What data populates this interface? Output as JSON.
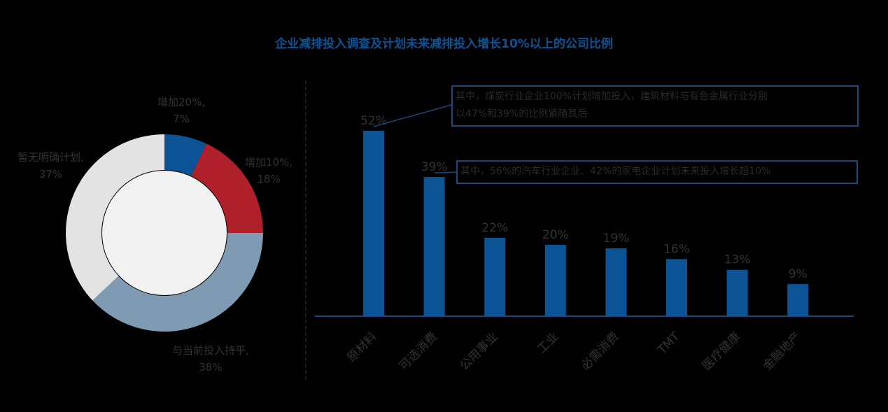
{
  "chart_title": "企业减排投入调查及计划未来减排投入增长10%以上的公司比例",
  "colors": {
    "title": "#0b5394",
    "bar": "#0b5394",
    "axis": "#1b4a7a",
    "text": "#333333",
    "donut_center": "#f2f2f2"
  },
  "chart_data": [
    {
      "type": "pie",
      "donut": true,
      "slices": [
        {
          "name": "增加20%,",
          "value": 7,
          "pct_label": "7%",
          "color": "#0b5394"
        },
        {
          "name": "增加10%,",
          "value": 18,
          "pct_label": "18%",
          "color": "#b0202a"
        },
        {
          "name": "与当前投入持平,",
          "value": 38,
          "pct_label": "38%",
          "color": "#7f9ab3"
        },
        {
          "name": "暂无明确计划,",
          "value": 37,
          "pct_label": "37%",
          "color": "#e3e3e3"
        }
      ]
    },
    {
      "type": "bar",
      "categories": [
        "原材料",
        "可选消费",
        "公用事业",
        "工业",
        "必需消费",
        "TMT",
        "医疗健康",
        "金融地产"
      ],
      "values": [
        52,
        39,
        22,
        20,
        19,
        16,
        13,
        9
      ],
      "data_labels": [
        "52%",
        "39%",
        "22%",
        "20%",
        "19%",
        "16%",
        "13%",
        "9%"
      ],
      "ylim": [
        0,
        60
      ],
      "annotations": [
        {
          "target_index": 0,
          "lines": [
            "其中，煤炭行业企业100%计划增加投入，建筑材料与有色金属行业分别",
            "以47%和39%的比例紧随其后"
          ]
        },
        {
          "target_index": 1,
          "lines": [
            "其中，56%的汽车行业企业、42%的家电企业计划未来投入增长超10%"
          ]
        }
      ]
    }
  ]
}
